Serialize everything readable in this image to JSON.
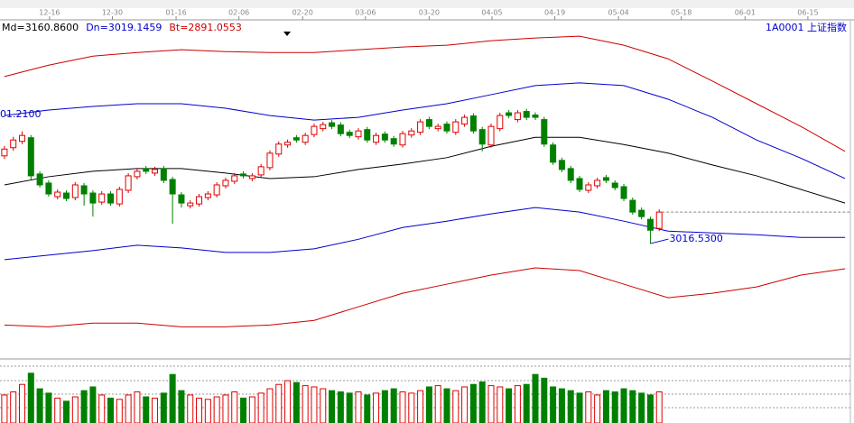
{
  "chart_data": {
    "type": "candlestick",
    "header_legend": [
      "Md=3160.8600",
      "Dn=3019.1459",
      "Bt=2891.0553"
    ],
    "header_legend_colors": [
      "#000000",
      "#0000cc",
      "#cc0000"
    ],
    "symbol": "1A0001 上证指数",
    "annotations": [
      "01.2100",
      "3016.5300"
    ],
    "xlim": [
      -0.5,
      95.4
    ],
    "ylim": [
      2768,
      3510
    ],
    "xticks": [
      {
        "value": 5.1,
        "label": "12-16"
      },
      {
        "value": 12.2,
        "label": "12-30"
      },
      {
        "value": 19.4,
        "label": "01-16"
      },
      {
        "value": 26.5,
        "label": "02-06"
      },
      {
        "value": 33.7,
        "label": "02-20"
      },
      {
        "value": 40.8,
        "label": "03-06"
      },
      {
        "value": 48,
        "label": "03-20"
      },
      {
        "value": 55.1,
        "label": "04-05"
      },
      {
        "value": 62.2,
        "label": "04-19"
      },
      {
        "value": 69.4,
        "label": "05-04"
      },
      {
        "value": 76.5,
        "label": "05-18"
      },
      {
        "value": 83.7,
        "label": "06-01"
      },
      {
        "value": 90.8,
        "label": "06-15"
      }
    ],
    "up_color": "#e00000",
    "down_color": "#008000",
    "open": [
      3210,
      3228,
      3242,
      3250,
      3170,
      3150,
      3120,
      3128,
      3118,
      3144,
      3128,
      3108,
      3126,
      3104,
      3134,
      3164,
      3182,
      3172,
      3182,
      3158,
      3124,
      3100,
      3104,
      3118,
      3124,
      3144,
      3154,
      3170,
      3160,
      3168,
      3184,
      3214,
      3234,
      3250,
      3240,
      3257,
      3270,
      3283,
      3278,
      3262,
      3252,
      3268,
      3240,
      3258,
      3248,
      3234,
      3256,
      3262,
      3290,
      3270,
      3280,
      3262,
      3280,
      3298,
      3268,
      3234,
      3270,
      3305,
      3290,
      3308,
      3300,
      3290,
      3234,
      3200,
      3182,
      3160,
      3134,
      3144,
      3162,
      3150,
      3142,
      3112,
      3090,
      3070,
      3050
    ],
    "high": [
      3232,
      3252,
      3264,
      3256,
      3176,
      3156,
      3136,
      3134,
      3152,
      3150,
      3134,
      3132,
      3132,
      3142,
      3172,
      3182,
      3188,
      3186,
      3188,
      3164,
      3130,
      3112,
      3126,
      3132,
      3152,
      3162,
      3172,
      3176,
      3172,
      3192,
      3222,
      3242,
      3246,
      3256,
      3261,
      3281,
      3285,
      3289,
      3284,
      3268,
      3271,
      3274,
      3261,
      3264,
      3254,
      3265,
      3271,
      3291,
      3296,
      3281,
      3286,
      3291,
      3301,
      3304,
      3274,
      3281,
      3305,
      3311,
      3311,
      3314,
      3306,
      3296,
      3240,
      3206,
      3188,
      3166,
      3152,
      3162,
      3168,
      3156,
      3148,
      3118,
      3096,
      3076,
      3092
    ],
    "low": [
      3203,
      3221,
      3236,
      3158,
      3140,
      3120,
      3114,
      3110,
      3112,
      3100,
      3076,
      3102,
      3100,
      3098,
      3128,
      3158,
      3170,
      3166,
      3150,
      3060,
      3096,
      3094,
      3098,
      3112,
      3118,
      3138,
      3148,
      3160,
      3154,
      3162,
      3178,
      3208,
      3228,
      3239,
      3234,
      3251,
      3264,
      3269,
      3253,
      3249,
      3246,
      3239,
      3234,
      3239,
      3230,
      3228,
      3250,
      3256,
      3269,
      3264,
      3259,
      3256,
      3274,
      3259,
      3220,
      3228,
      3264,
      3293,
      3284,
      3289,
      3289,
      3230,
      3190,
      3174,
      3150,
      3130,
      3128,
      3138,
      3150,
      3134,
      3110,
      3080,
      3070,
      3016.53,
      3044
    ],
    "close": [
      3225,
      3245,
      3255,
      3166,
      3146,
      3126,
      3130,
      3116,
      3146,
      3126,
      3106,
      3126,
      3106,
      3136,
      3166,
      3176,
      3176,
      3180,
      3156,
      3126,
      3106,
      3106,
      3120,
      3126,
      3146,
      3156,
      3166,
      3166,
      3166,
      3186,
      3216,
      3236,
      3240,
      3245,
      3255,
      3275,
      3279,
      3275,
      3259,
      3255,
      3265,
      3245,
      3255,
      3245,
      3236,
      3259,
      3265,
      3285,
      3275,
      3275,
      3265,
      3285,
      3295,
      3265,
      3236,
      3275,
      3299,
      3299,
      3305,
      3295,
      3295,
      3236,
      3196,
      3180,
      3156,
      3136,
      3146,
      3156,
      3156,
      3140,
      3116,
      3086,
      3076,
      3046,
      3086
    ],
    "volume_lim": [
      0,
      100
    ],
    "volume": [
      45,
      50,
      62,
      80,
      55,
      48,
      40,
      35,
      42,
      52,
      58,
      45,
      40,
      38,
      45,
      50,
      42,
      40,
      48,
      78,
      52,
      45,
      40,
      38,
      42,
      45,
      50,
      40,
      42,
      48,
      55,
      62,
      68,
      65,
      60,
      58,
      55,
      52,
      50,
      48,
      50,
      45,
      48,
      52,
      55,
      50,
      48,
      52,
      58,
      60,
      55,
      52,
      58,
      62,
      66,
      60,
      58,
      55,
      60,
      62,
      78,
      72,
      58,
      55,
      52,
      48,
      50,
      45,
      52,
      50,
      55,
      52,
      48,
      45,
      50
    ],
    "series": [
      {
        "color": "#cc0000",
        "x": [
          0,
          5,
          10,
          15,
          20,
          25,
          30,
          35,
          40,
          45,
          50,
          55,
          60,
          65,
          70,
          75,
          80,
          85,
          90,
          95
        ],
        "values": [
          3385,
          3410,
          3430,
          3438,
          3444,
          3440,
          3438,
          3438,
          3444,
          3450,
          3454,
          3464,
          3470,
          3474,
          3454,
          3424,
          3375,
          3325,
          3275,
          3220
        ]
      },
      {
        "color": "#0000cc",
        "x": [
          0,
          5,
          10,
          15,
          20,
          25,
          30,
          35,
          40,
          45,
          50,
          55,
          60,
          65,
          70,
          75,
          80,
          85,
          90,
          95
        ],
        "values": [
          3299,
          3311,
          3319,
          3325,
          3325,
          3315,
          3299,
          3289,
          3295,
          3311,
          3325,
          3345,
          3365,
          3371,
          3365,
          3335,
          3295,
          3245,
          3205,
          3160
        ]
      },
      {
        "color": "#000000",
        "x": [
          0,
          5,
          10,
          15,
          20,
          25,
          30,
          35,
          40,
          45,
          50,
          55,
          60,
          65,
          70,
          75,
          80,
          85,
          90,
          95
        ],
        "values": [
          3146,
          3164,
          3176,
          3182,
          3182,
          3172,
          3160,
          3164,
          3180,
          3192,
          3206,
          3231,
          3251,
          3251,
          3235,
          3216,
          3190,
          3166,
          3136,
          3106
        ]
      },
      {
        "color": "#0000cc",
        "x": [
          0,
          5,
          10,
          15,
          20,
          25,
          30,
          35,
          40,
          45,
          50,
          55,
          60,
          65,
          70,
          75,
          80,
          85,
          90,
          95
        ],
        "values": [
          2981,
          2991,
          3001,
          3013,
          3007,
          2997,
          2997,
          3005,
          3026,
          3052,
          3066,
          3082,
          3096,
          3086,
          3066,
          3044,
          3040,
          3036,
          3030,
          3030
        ]
      },
      {
        "color": "#cc0000",
        "x": [
          0,
          5,
          10,
          15,
          20,
          25,
          30,
          35,
          40,
          45,
          50,
          55,
          60,
          65,
          70,
          75,
          80,
          85,
          90,
          95
        ],
        "values": [
          2837,
          2833,
          2841,
          2841,
          2833,
          2833,
          2837,
          2847,
          2877,
          2907,
          2927,
          2947,
          2963,
          2957,
          2927,
          2897,
          2907,
          2921,
          2947,
          2961
        ]
      }
    ]
  }
}
